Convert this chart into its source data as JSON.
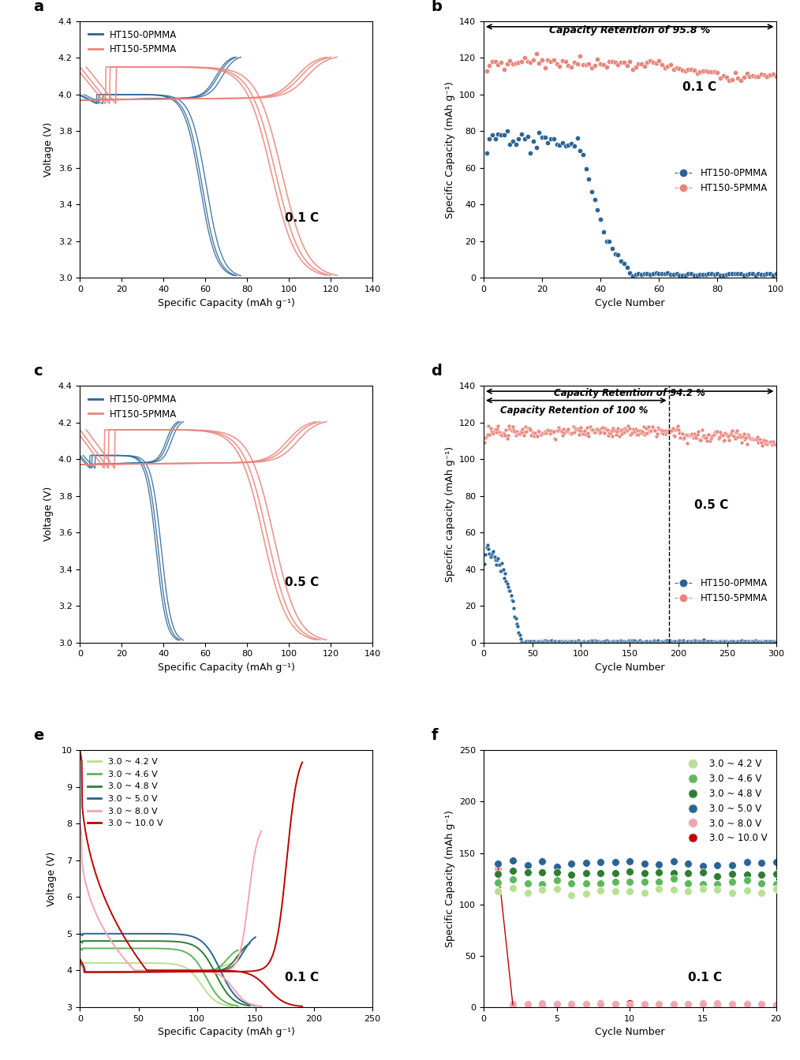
{
  "fig_width": 10.14,
  "fig_height": 13.44,
  "background": "white",
  "panel_a": {
    "label": "a",
    "xlabel": "Specific Capacity (mAh g⁻¹)",
    "ylabel": "Voltage (V)",
    "xlim": [
      0,
      140
    ],
    "ylim": [
      3.0,
      4.4
    ],
    "xticks": [
      0,
      20,
      40,
      60,
      80,
      100,
      120,
      140
    ],
    "yticks": [
      3.0,
      3.2,
      3.4,
      3.6,
      3.8,
      4.0,
      4.2,
      4.4
    ],
    "annotation": "0.1 C",
    "legend": [
      "HT150-0PMMA",
      "HT150-5PMMA"
    ],
    "color_0pmma": "#2a6496",
    "color_5pmma": "#e8857a",
    "cap_0pmma": 75,
    "cap_5pmma": 120
  },
  "panel_b": {
    "label": "b",
    "xlabel": "Cycle Number",
    "ylabel": "Specific Capacity (mAh g⁻¹)",
    "xlim": [
      0,
      100
    ],
    "ylim": [
      0,
      140
    ],
    "xticks": [
      0,
      20,
      40,
      60,
      80,
      100
    ],
    "yticks": [
      0,
      20,
      40,
      60,
      80,
      100,
      120,
      140
    ],
    "annotation": "0.1 C",
    "retention_text": "Capacity Retention of 95.8 %",
    "legend": [
      "HT150-0PMMA",
      "HT150-5PMMA"
    ],
    "color_0pmma": "#2a6496",
    "color_5pmma": "#e8857a"
  },
  "panel_c": {
    "label": "c",
    "xlabel": "Specific Capacity (mAh g⁻¹)",
    "ylabel": "Voltage (V)",
    "xlim": [
      0,
      140
    ],
    "ylim": [
      3.0,
      4.4
    ],
    "xticks": [
      0,
      20,
      40,
      60,
      80,
      100,
      120,
      140
    ],
    "yticks": [
      3.0,
      3.2,
      3.4,
      3.6,
      3.8,
      4.0,
      4.2,
      4.4
    ],
    "annotation": "0.5 C",
    "legend": [
      "HT150-0PMMA",
      "HT150-5PMMA"
    ],
    "color_0pmma": "#2a6496",
    "color_5pmma": "#e8857a",
    "cap_0pmma": 48,
    "cap_5pmma": 115
  },
  "panel_d": {
    "label": "d",
    "xlabel": "Cycle Number",
    "ylabel": "Specific capacity (mAh g⁻¹)",
    "xlim": [
      0,
      300
    ],
    "ylim": [
      0,
      140
    ],
    "xticks": [
      0,
      50,
      100,
      150,
      200,
      250,
      300
    ],
    "yticks": [
      0,
      20,
      40,
      60,
      80,
      100,
      120,
      140
    ],
    "annotation": "0.5 C",
    "retention_text1": "Capacity Retention of 94.2 %",
    "retention_text2": "Capacity Retention of 100 %",
    "dashed_x": 190,
    "legend": [
      "HT150-0PMMA",
      "HT150-5PMMA"
    ],
    "color_0pmma": "#2a6496",
    "color_5pmma": "#e8857a"
  },
  "panel_e": {
    "label": "e",
    "xlabel": "Specific Capacity (mAh g⁻¹)",
    "ylabel": "Voltage (V)",
    "xlim": [
      0,
      250
    ],
    "ylim": [
      3.0,
      10.0
    ],
    "xticks": [
      0,
      50,
      100,
      150,
      200,
      250
    ],
    "yticks": [
      3,
      4,
      5,
      6,
      7,
      8,
      9,
      10
    ],
    "annotation": "0.1 C",
    "legend_labels": [
      "3.0 ~ 4.2 V",
      "3.0 ~ 4.6 V",
      "3.0 ~ 4.8 V",
      "3.0 ~ 5.0 V",
      "3.0 ~ 8.0 V",
      "3.0 ~ 10.0 V"
    ],
    "colors": [
      "#b8e090",
      "#5cb85c",
      "#2e7d32",
      "#2a6496",
      "#f4a4b0",
      "#c00000"
    ],
    "caps": [
      130,
      135,
      145,
      150,
      155,
      190
    ],
    "vhi": [
      4.2,
      4.6,
      4.8,
      5.0,
      8.0,
      10.0
    ]
  },
  "panel_f": {
    "label": "f",
    "xlabel": "Cycle Number",
    "ylabel": "Specific Capacity (mAh g⁻¹)",
    "xlim": [
      0,
      20
    ],
    "ylim": [
      0,
      250
    ],
    "xticks": [
      0,
      5,
      10,
      15,
      20
    ],
    "yticks": [
      0,
      50,
      100,
      150,
      200,
      250
    ],
    "annotation": "0.1 C",
    "legend_labels": [
      "3.0 ~ 4.2 V",
      "3.0 ~ 4.6 V",
      "3.0 ~ 4.8 V",
      "3.0 ~ 5.0 V",
      "3.0 ~ 8.0 V",
      "3.0 ~ 10.0 V"
    ],
    "colors": [
      "#b8e090",
      "#5cb85c",
      "#2e7d32",
      "#2a6496",
      "#f4a4b0",
      "#c00000"
    ],
    "stable_caps": [
      113,
      121,
      130,
      140,
      0,
      0
    ],
    "init_caps": [
      113,
      121,
      130,
      140,
      135,
      135
    ]
  }
}
